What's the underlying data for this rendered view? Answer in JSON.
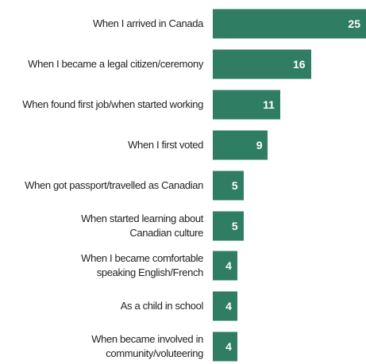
{
  "chart_data": {
    "type": "bar",
    "orientation": "horizontal",
    "categories": [
      "When I arrived in Canada",
      "When I became a legal citizen/ceremony",
      "When found first job/when started working",
      "When I first voted",
      "When got passport/travelled as Canadian",
      "When started learning about\nCanadian culture",
      "When I became comfortable\nspeaking English/French",
      "As a child in school",
      "When became involved in\ncommunity/voluteering"
    ],
    "values": [
      25,
      16,
      11,
      9,
      5,
      5,
      4,
      4,
      4
    ],
    "color": "#2f7d63",
    "xlim": [
      0,
      25
    ]
  }
}
